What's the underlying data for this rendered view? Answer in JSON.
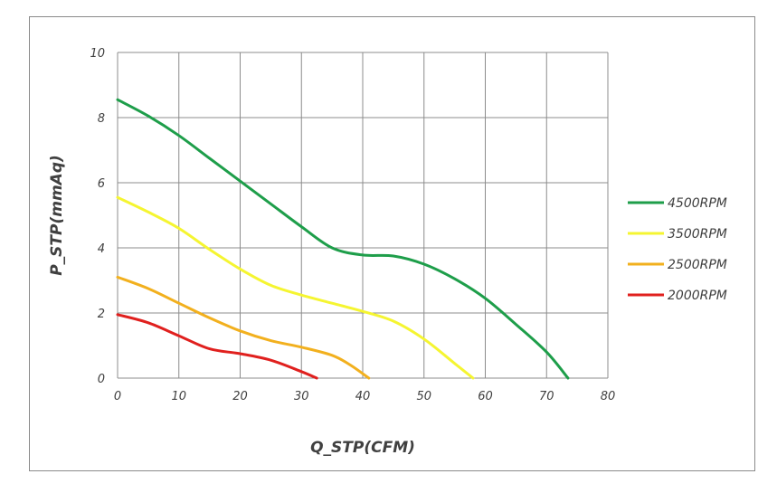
{
  "chart_data": {
    "type": "line",
    "xlabel": "Q_STP(CFM)",
    "ylabel": "P_STP(mmAq)",
    "xlim": [
      0,
      80
    ],
    "ylim": [
      0,
      10
    ],
    "x_ticks": [
      0,
      10,
      20,
      30,
      40,
      50,
      60,
      70,
      80
    ],
    "y_ticks": [
      0,
      2,
      4,
      6,
      8,
      10
    ],
    "grid": true,
    "legend_position": "right",
    "series": [
      {
        "name": "4500RPM",
        "color": "#1e9e4a",
        "points": [
          [
            0,
            8.55
          ],
          [
            5,
            8.05
          ],
          [
            10,
            7.45
          ],
          [
            15,
            6.75
          ],
          [
            20,
            6.05
          ],
          [
            25,
            5.35
          ],
          [
            30,
            4.65
          ],
          [
            35,
            4.0
          ],
          [
            40,
            3.78
          ],
          [
            45,
            3.75
          ],
          [
            50,
            3.5
          ],
          [
            55,
            3.05
          ],
          [
            60,
            2.45
          ],
          [
            65,
            1.65
          ],
          [
            70,
            0.8
          ],
          [
            73.5,
            0.0
          ]
        ]
      },
      {
        "name": "3500RPM",
        "color": "#f5f531",
        "points": [
          [
            0,
            5.55
          ],
          [
            5,
            5.1
          ],
          [
            10,
            4.6
          ],
          [
            15,
            3.95
          ],
          [
            20,
            3.35
          ],
          [
            25,
            2.85
          ],
          [
            30,
            2.55
          ],
          [
            35,
            2.3
          ],
          [
            40,
            2.05
          ],
          [
            45,
            1.75
          ],
          [
            50,
            1.2
          ],
          [
            55,
            0.45
          ],
          [
            58,
            0.0
          ]
        ]
      },
      {
        "name": "2500RPM",
        "color": "#f2b01e",
        "points": [
          [
            0,
            3.1
          ],
          [
            5,
            2.75
          ],
          [
            10,
            2.3
          ],
          [
            15,
            1.85
          ],
          [
            20,
            1.45
          ],
          [
            25,
            1.15
          ],
          [
            30,
            0.95
          ],
          [
            35,
            0.7
          ],
          [
            38,
            0.4
          ],
          [
            41,
            0.0
          ]
        ]
      },
      {
        "name": "2000RPM",
        "color": "#e0201e",
        "points": [
          [
            0,
            1.95
          ],
          [
            5,
            1.7
          ],
          [
            10,
            1.3
          ],
          [
            15,
            0.9
          ],
          [
            20,
            0.75
          ],
          [
            25,
            0.55
          ],
          [
            30,
            0.2
          ],
          [
            32.5,
            0.0
          ]
        ]
      }
    ]
  }
}
